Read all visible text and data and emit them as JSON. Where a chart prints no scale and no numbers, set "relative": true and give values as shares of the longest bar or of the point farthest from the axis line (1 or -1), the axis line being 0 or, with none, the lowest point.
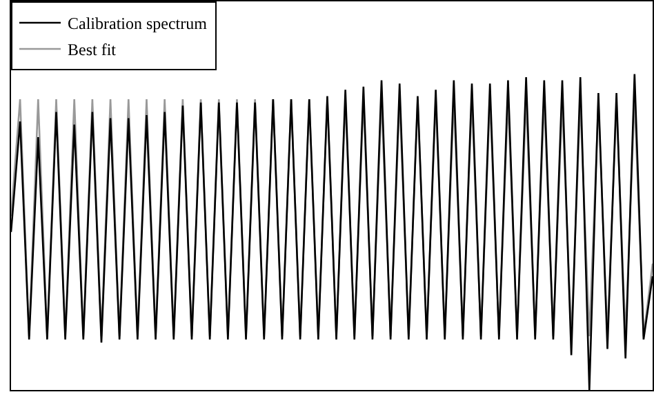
{
  "chart_data": {
    "type": "line",
    "relative": true,
    "legend": "top left",
    "categories": [
      null,
      null,
      null,
      null,
      null,
      null,
      null,
      null,
      null,
      null,
      null,
      null,
      null,
      null,
      null,
      null,
      null,
      null,
      null,
      null,
      null,
      null,
      null,
      null,
      null,
      null,
      null,
      null,
      null,
      null,
      null,
      null,
      null,
      null,
      null,
      null,
      null,
      null,
      null,
      null,
      null,
      null,
      null,
      null,
      null,
      null,
      null,
      null,
      null,
      null,
      null,
      null,
      null,
      null,
      null,
      null,
      null,
      null,
      null,
      null,
      null,
      null,
      null,
      null,
      null,
      null,
      null,
      null,
      null,
      null,
      null,
      null
    ],
    "series": [
      {
        "name": "Calibration spectrum",
        "color": "#000000",
        "values": [
          0.5,
          0.85,
          0.16,
          0.8,
          0.16,
          0.88,
          0.16,
          0.84,
          0.16,
          0.88,
          0.15,
          0.86,
          0.16,
          0.86,
          0.16,
          0.87,
          0.16,
          0.88,
          0.16,
          0.9,
          0.16,
          0.91,
          0.16,
          0.91,
          0.16,
          0.91,
          0.16,
          0.91,
          0.16,
          0.92,
          0.16,
          0.92,
          0.16,
          0.92,
          0.16,
          0.93,
          0.16,
          0.95,
          0.16,
          0.96,
          0.16,
          0.98,
          0.16,
          0.97,
          0.16,
          0.93,
          0.16,
          0.95,
          0.16,
          0.98,
          0.16,
          0.97,
          0.16,
          0.97,
          0.16,
          0.98,
          0.16,
          0.99,
          0.16,
          0.98,
          0.16,
          0.98,
          0.11,
          0.99,
          0.0,
          0.94,
          0.13,
          0.94,
          0.1,
          1.0,
          0.16,
          0.36
        ]
      },
      {
        "name": "Best fit",
        "color": "#999999",
        "values": [
          0.55,
          0.92,
          0.17,
          0.92,
          0.17,
          0.92,
          0.17,
          0.92,
          0.17,
          0.92,
          0.17,
          0.92,
          0.17,
          0.92,
          0.17,
          0.92,
          0.17,
          0.92,
          0.17,
          0.92,
          0.17,
          0.92,
          0.17,
          0.92,
          0.17,
          0.92,
          0.17,
          0.92,
          0.17,
          0.92,
          0.17,
          0.92,
          0.17,
          0.92,
          0.17,
          0.92,
          0.17,
          0.92,
          0.17,
          0.92,
          0.17,
          0.92,
          0.17,
          0.92,
          0.17,
          0.92,
          0.17,
          0.92,
          0.17,
          0.92,
          0.17,
          0.92,
          0.17,
          0.92,
          0.17,
          0.92,
          0.17,
          0.92,
          0.17,
          0.92,
          0.17,
          0.91,
          0.17,
          0.91,
          0.17,
          0.91,
          0.17,
          0.91,
          0.17,
          0.92,
          0.17,
          0.4
        ]
      }
    ]
  }
}
